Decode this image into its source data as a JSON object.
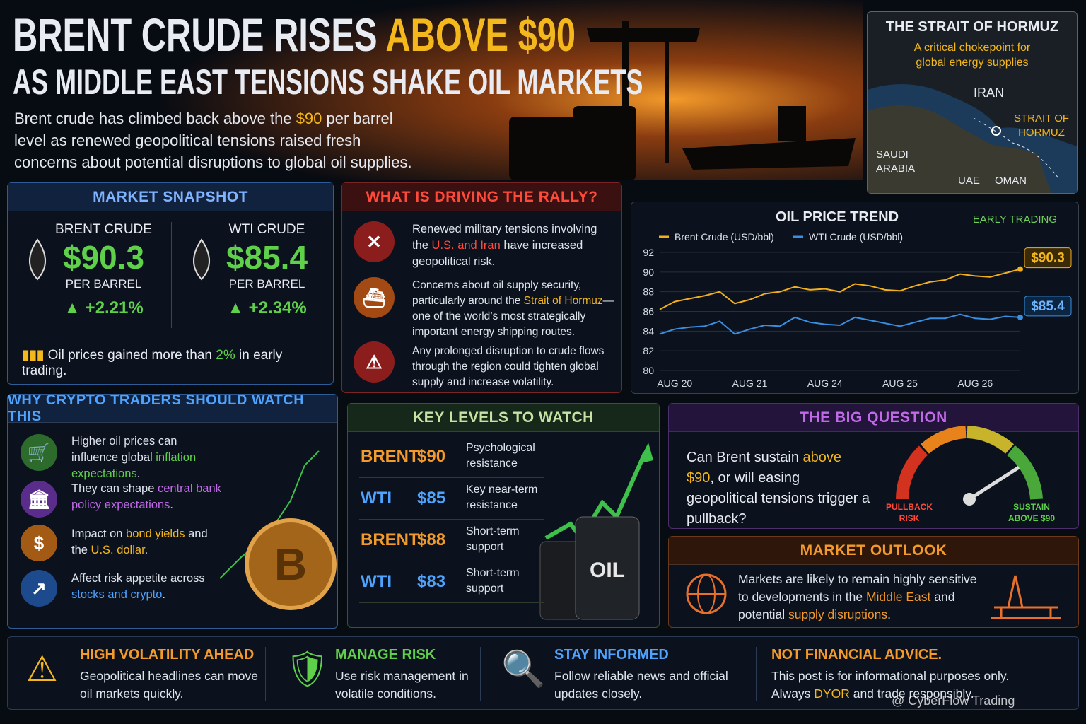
{
  "header": {
    "title_a": "BRENT CRUDE RISES",
    "title_b": "ABOVE $90",
    "subtitle": "AS MIDDLE EAST TENSIONS SHAKE OIL MARKETS",
    "intro": [
      "Brent crude has climbed back above the ",
      "$90",
      " per barrel level as renewed geopolitical tensions raised fresh concerns about potential disruptions to global oil supplies."
    ]
  },
  "map": {
    "title": "THE STRAIT OF HORMUZ",
    "subtitle": "A critical chokepoint for global energy supplies",
    "labels": [
      "IRAN",
      "STRAIT OF HORMUZ",
      "SAUDI ARABIA",
      "UAE",
      "OMAN"
    ]
  },
  "snapshot": {
    "title": "MARKET SNAPSHOT",
    "items": [
      {
        "name": "BRENT CRUDE",
        "price": "$90.3",
        "unit": "PER BARREL",
        "change": "+2.21%"
      },
      {
        "name": "WTI CRUDE",
        "price": "$85.4",
        "unit": "PER BARREL",
        "change": "+2.34%"
      }
    ],
    "note": [
      "Oil prices gained more than ",
      "2%",
      " in early trading."
    ]
  },
  "drivers": {
    "title": "WHAT IS DRIVING THE RALLY?",
    "items": [
      [
        "Renewed military tensions involving the ",
        "U.S. and Iran",
        " have increased geopolitical risk."
      ],
      [
        "Concerns about oil supply security, particularly around the ",
        "Strait of Hormuz",
        "—one of the world’s most strategically important energy shipping routes."
      ],
      [
        "Any prolonged disruption to crude flows through the region could tighten global supply and increase volatility."
      ]
    ]
  },
  "chart_data": {
    "type": "line",
    "title": "OIL PRICE TREND",
    "annotation": "EARLY TRADING",
    "categories": [
      null,
      "AUG 20",
      null,
      null,
      null,
      null,
      "AUG 21",
      null,
      null,
      null,
      null,
      "AUG 24",
      null,
      null,
      null,
      null,
      "AUG 25",
      null,
      null,
      null,
      null,
      "AUG 26",
      null,
      null,
      null
    ],
    "series": [
      {
        "name": "Brent Crude (USD/bbl)",
        "color": "#f2b01e",
        "end_label": "$90.3",
        "values": [
          86.2,
          87.0,
          87.3,
          87.6,
          88.0,
          86.8,
          87.2,
          87.8,
          88.0,
          88.5,
          88.2,
          88.3,
          88.0,
          88.8,
          88.6,
          88.2,
          88.1,
          88.6,
          89.0,
          89.2,
          89.8,
          89.6,
          89.5,
          89.9,
          90.3
        ]
      },
      {
        "name": "WTI Crude (USD/bbl)",
        "color": "#3a8fe0",
        "end_label": "$85.4",
        "values": [
          83.7,
          84.2,
          84.4,
          84.5,
          85.0,
          83.7,
          84.2,
          84.6,
          84.5,
          85.4,
          84.9,
          84.7,
          84.6,
          85.4,
          85.1,
          84.8,
          84.5,
          84.9,
          85.3,
          85.3,
          85.7,
          85.3,
          85.2,
          85.5,
          85.4
        ]
      }
    ],
    "ylim": [
      80,
      92
    ],
    "yticks": [
      80,
      82,
      84,
      86,
      88,
      90,
      92
    ],
    "grid": true
  },
  "crypto": {
    "title": "WHY CRYPTO TRADERS SHOULD WATCH THIS",
    "items": [
      [
        "Higher oil prices can influence global ",
        "inflation expectations",
        "."
      ],
      [
        "They can shape ",
        "central bank policy expectations",
        "."
      ],
      [
        "Impact on ",
        "bond yields",
        " and the ",
        "U.S. dollar",
        "."
      ],
      [
        "Affect risk appetite across ",
        "stocks and crypto",
        "."
      ]
    ]
  },
  "levels": {
    "title": "KEY LEVELS TO WATCH",
    "rows": [
      [
        "BRENT",
        "$90",
        "Psychological resistance"
      ],
      [
        "WTI",
        "$85",
        "Key near-term resistance"
      ],
      [
        "BRENT",
        "$88",
        "Short-term support"
      ],
      [
        "WTI",
        "$83",
        "Short-term support"
      ]
    ],
    "barrel_label": "OIL"
  },
  "question": {
    "title": "THE BIG QUESTION",
    "text": [
      "Can Brent sustain ",
      "above $90",
      ", or will easing geopolitical tensions trigger a pullback?"
    ],
    "gauge": [
      "PULLBACK RISK",
      "SUSTAIN ABOVE $90"
    ]
  },
  "outlook": {
    "title": "MARKET OUTLOOK",
    "text": [
      "Markets are likely to remain highly sensitive to developments in the ",
      "Middle East",
      " and potential ",
      "supply disruptions",
      "."
    ]
  },
  "footer": {
    "items": [
      {
        "title": "HIGH VOLATILITY AHEAD",
        "text": "Geopolitical headlines can move oil markets quickly."
      },
      {
        "title": "MANAGE RISK",
        "text": "Use risk management in volatile conditions."
      },
      {
        "title": "STAY INFORMED",
        "text": "Follow reliable news and official updates closely."
      },
      {
        "title": "NOT FINANCIAL ADVICE.",
        "text": [
          "This post is for informational purposes only. Always ",
          "DYOR",
          " and trade responsibly."
        ]
      }
    ],
    "watermark": "@ CyberFlow Trading"
  }
}
